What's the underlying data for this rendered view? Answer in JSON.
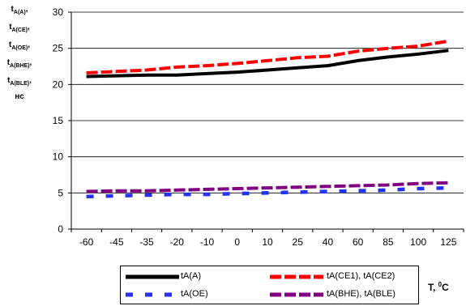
{
  "chart_data": {
    "type": "line",
    "categories": [
      "-60",
      "-45",
      "-35",
      "-20",
      "-10",
      "0",
      "10",
      "25",
      "40",
      "60",
      "85",
      "100",
      "125"
    ],
    "ylim": [
      0,
      30
    ],
    "yticks": [
      0,
      5,
      10,
      15,
      20,
      25,
      30
    ],
    "grid": "horizontal",
    "ylabel": {
      "base": "t",
      "subscripts": [
        "A(A)",
        "A(CE)",
        "A(OE)",
        "A(BHE)",
        "A(BLE)"
      ],
      "separator": ",",
      "unit": "нс"
    },
    "xlabel": {
      "base": "T, ",
      "degree": "0",
      "unit": "C"
    },
    "legend_placement": "bottom",
    "series": [
      {
        "name": "tA(A)",
        "color": "#000000",
        "style": "solid",
        "values": [
          21.1,
          21.2,
          21.3,
          21.3,
          21.5,
          21.7,
          22.0,
          22.3,
          22.6,
          23.3,
          23.8,
          24.2,
          24.7
        ]
      },
      {
        "name": "tA(CE1), tA(CE2)",
        "color": "#ff0000",
        "style": "dashed",
        "values": [
          21.6,
          21.8,
          22.0,
          22.4,
          22.6,
          22.9,
          23.3,
          23.7,
          23.9,
          24.6,
          25.0,
          25.3,
          26.0
        ]
      },
      {
        "name": "tA(OE)",
        "color": "#2233ff",
        "style": "dashed",
        "values": [
          4.5,
          4.6,
          4.7,
          4.8,
          4.8,
          4.9,
          5.0,
          5.1,
          5.2,
          5.3,
          5.4,
          5.6,
          5.7
        ]
      },
      {
        "name": "tA(BHE), tA(BLE)",
        "color": "#800080",
        "style": "dashed",
        "values": [
          5.2,
          5.3,
          5.3,
          5.4,
          5.5,
          5.6,
          5.7,
          5.8,
          5.9,
          6.0,
          6.1,
          6.3,
          6.4
        ]
      }
    ]
  }
}
